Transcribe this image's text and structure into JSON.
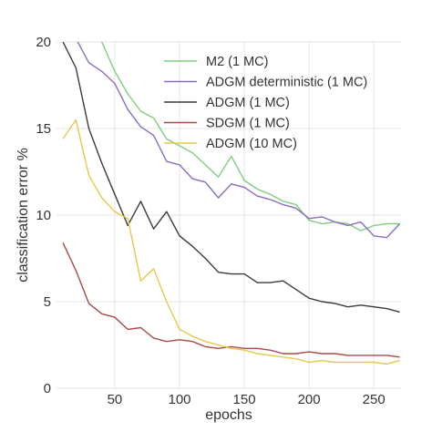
{
  "chart_data": {
    "type": "line",
    "title": "",
    "xlabel": "epochs",
    "ylabel": "classification error %",
    "xlim": [
      5,
      271
    ],
    "ylim": [
      0,
      20
    ],
    "xticks": [
      50,
      100,
      150,
      200,
      250
    ],
    "yticks": [
      0,
      5,
      10,
      15,
      20
    ],
    "grid": true,
    "legend_position": "top-right",
    "series": [
      {
        "name": "M2 (1 MC)",
        "color": "#7fcf7f",
        "x": [
          20,
          30,
          40,
          50,
          60,
          70,
          80,
          90,
          100,
          110,
          120,
          130,
          140,
          150,
          160,
          170,
          180,
          190,
          200,
          210,
          220,
          230,
          240,
          250,
          260,
          270
        ],
        "y": [
          21.5,
          20.4,
          20.0,
          18.3,
          17.0,
          16.0,
          15.6,
          14.4,
          14.0,
          13.6,
          12.9,
          12.2,
          13.4,
          12.0,
          11.5,
          11.2,
          10.8,
          10.6,
          9.7,
          9.5,
          9.6,
          9.5,
          9.1,
          9.4,
          9.5,
          9.5
        ]
      },
      {
        "name": "ADGM deterministic (1 MC)",
        "color": "#8a6cc2",
        "x": [
          20,
          30,
          40,
          50,
          60,
          70,
          80,
          90,
          100,
          110,
          120,
          130,
          140,
          150,
          160,
          170,
          180,
          190,
          200,
          210,
          220,
          230,
          240,
          250,
          260,
          270
        ],
        "y": [
          20.2,
          18.8,
          18.3,
          17.6,
          16.1,
          15.1,
          14.6,
          13.1,
          12.9,
          12.1,
          11.9,
          11.0,
          11.8,
          11.6,
          11.1,
          10.9,
          10.6,
          10.4,
          9.8,
          9.9,
          9.6,
          9.4,
          9.6,
          8.8,
          8.7,
          9.5
        ]
      },
      {
        "name": "ADGM (1 MC)",
        "color": "#3a3a3a",
        "x": [
          10,
          20,
          30,
          40,
          50,
          60,
          70,
          80,
          90,
          100,
          110,
          120,
          130,
          140,
          150,
          160,
          170,
          180,
          190,
          200,
          210,
          220,
          230,
          240,
          250,
          260,
          270
        ],
        "y": [
          20.0,
          18.5,
          15.0,
          13.0,
          11.2,
          9.4,
          10.8,
          9.2,
          10.2,
          8.8,
          8.2,
          7.5,
          6.7,
          6.6,
          6.6,
          6.1,
          6.1,
          6.2,
          5.7,
          5.2,
          5.0,
          4.9,
          4.7,
          4.8,
          4.7,
          4.6,
          4.4
        ]
      },
      {
        "name": "SDGM (1 MC)",
        "color": "#a84a4a",
        "x": [
          10,
          20,
          30,
          40,
          50,
          60,
          70,
          80,
          90,
          100,
          110,
          120,
          130,
          140,
          150,
          160,
          170,
          180,
          190,
          200,
          210,
          220,
          230,
          240,
          250,
          260,
          270
        ],
        "y": [
          8.4,
          6.8,
          4.9,
          4.3,
          4.1,
          3.4,
          3.5,
          2.9,
          2.7,
          2.8,
          2.7,
          2.4,
          2.3,
          2.4,
          2.3,
          2.3,
          2.2,
          2.0,
          2.0,
          2.1,
          2.0,
          2.0,
          1.9,
          1.9,
          1.9,
          1.9,
          1.8
        ]
      },
      {
        "name": "ADGM (10 MC)",
        "color": "#e6c84a",
        "x": [
          10,
          20,
          30,
          40,
          50,
          60,
          70,
          80,
          90,
          100,
          110,
          120,
          130,
          140,
          150,
          160,
          170,
          180,
          190,
          200,
          210,
          220,
          230,
          240,
          250,
          260,
          270
        ],
        "y": [
          14.4,
          15.5,
          12.3,
          11.0,
          10.2,
          9.8,
          6.2,
          6.9,
          5.0,
          3.4,
          3.0,
          2.7,
          2.5,
          2.3,
          2.2,
          2.0,
          1.9,
          1.8,
          1.7,
          1.5,
          1.6,
          1.5,
          1.5,
          1.5,
          1.5,
          1.4,
          1.6
        ]
      }
    ]
  }
}
